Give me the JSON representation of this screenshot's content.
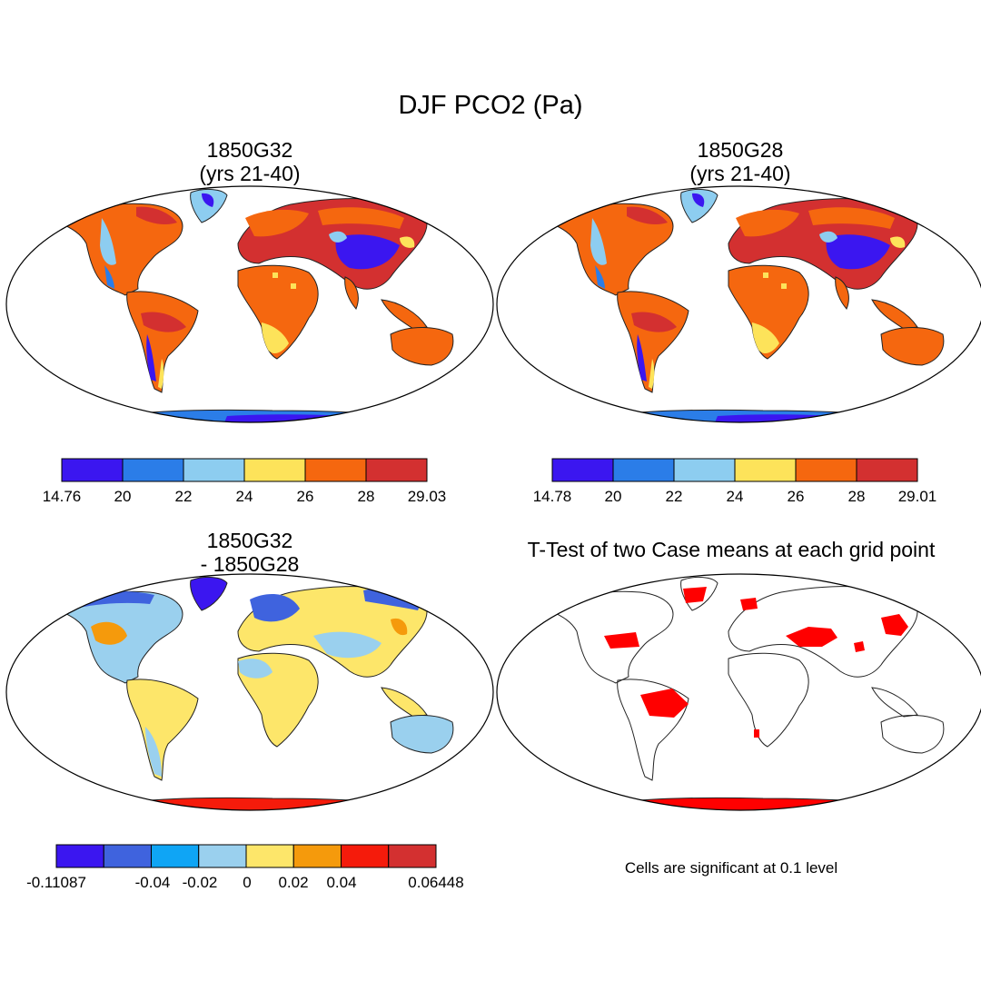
{
  "main_title": "DJF PCO2 (Pa)",
  "panels": [
    {
      "id": "p1",
      "title_line1": "1850G32",
      "title_line2": "(yrs 21-40)",
      "colorbar": {
        "colors": [
          "#3b16f0",
          "#2b7de8",
          "#8dcdf0",
          "#fde35a",
          "#f5670f",
          "#d33030"
        ],
        "labels": [
          "14.76",
          "20",
          "22",
          "24",
          "26",
          "28",
          "29.03"
        ]
      }
    },
    {
      "id": "p2",
      "title_line1": "1850G28",
      "title_line2": "(yrs 21-40)",
      "colorbar": {
        "colors": [
          "#3b16f0",
          "#2b7de8",
          "#8dcdf0",
          "#fde35a",
          "#f5670f",
          "#d33030"
        ],
        "labels": [
          "14.78",
          "20",
          "22",
          "24",
          "26",
          "28",
          "29.01"
        ]
      }
    },
    {
      "id": "p3",
      "title_line1": "1850G32",
      "title_line2": "- 1850G28",
      "colorbar": {
        "colors": [
          "#3b16f0",
          "#3f63de",
          "#0fa5f5",
          "#9ad0ee",
          "#fde66a",
          "#f59a0c",
          "#f51b0b",
          "#d33030"
        ],
        "labels": [
          "-0.11087",
          "",
          "-0.04",
          "-0.02",
          "0",
          "0.02",
          "0.04",
          "",
          "0.06448"
        ]
      }
    },
    {
      "id": "p4",
      "title_line1": "T-Test of two Case means at each grid point",
      "note": "Cells are significant at 0.1 level"
    }
  ]
}
